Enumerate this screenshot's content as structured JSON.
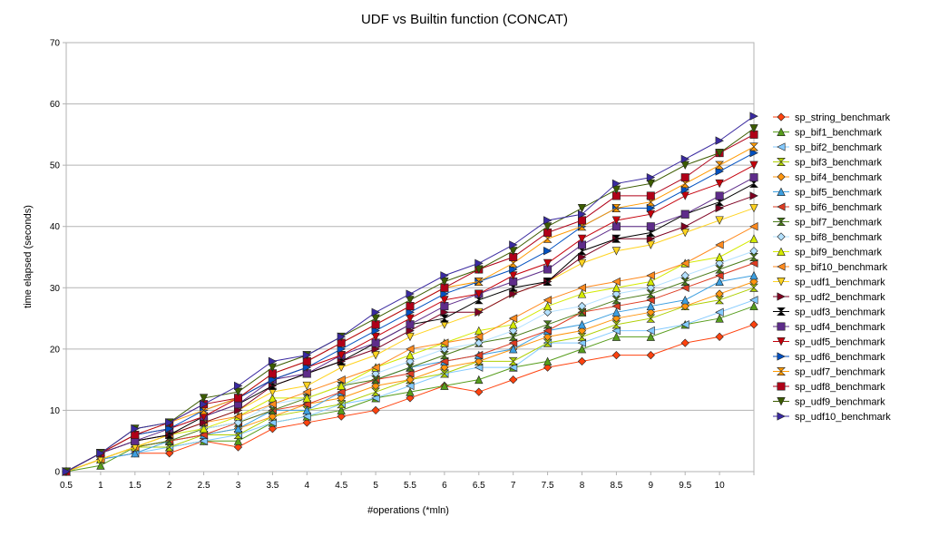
{
  "chart_data": {
    "type": "line",
    "title": "UDF vs Builtin function (CONCAT)",
    "xlabel": "#operations (*mln)",
    "ylabel": "time elapsed (seconds)",
    "x": [
      0.5,
      1,
      1.5,
      2,
      2.5,
      3,
      3.5,
      4,
      4.5,
      5,
      5.5,
      6,
      6.5,
      7,
      7.5,
      8,
      8.5,
      9,
      9.5,
      10,
      10.5
    ],
    "x_tick_labels": [
      "0.5",
      "1",
      "1.5",
      "2",
      "2.5",
      "3",
      "3.5",
      "4",
      "4.5",
      "5",
      "5.5",
      "6",
      "6.5",
      "7",
      "7.5",
      "8",
      "8.5",
      "9",
      "9.5",
      "10",
      ""
    ],
    "ylim": [
      0,
      70
    ],
    "y_ticks": [
      0,
      10,
      20,
      30,
      40,
      50,
      60,
      70
    ],
    "grid": "horizontal",
    "legend_position": "right",
    "series": [
      {
        "name": "sp_string_benchmark",
        "color": "#ff420e",
        "marker": "diamond",
        "values": [
          0,
          2,
          3,
          3,
          5,
          4,
          7,
          8,
          9,
          10,
          12,
          14,
          13,
          15,
          17,
          18,
          19,
          19,
          21,
          22,
          24
        ]
      },
      {
        "name": "sp_bif1_benchmark",
        "color": "#579d1c",
        "marker": "triangle-up",
        "values": [
          0,
          1,
          4,
          4,
          5,
          5,
          8,
          9,
          10,
          12,
          13,
          14,
          15,
          17,
          18,
          20,
          22,
          22,
          24,
          25,
          27
        ]
      },
      {
        "name": "sp_bif2_benchmark",
        "color": "#83caff",
        "marker": "triangle-left",
        "values": [
          0,
          2,
          3,
          4,
          5,
          6,
          8,
          9,
          11,
          12,
          14,
          16,
          17,
          17,
          21,
          21,
          23,
          23,
          24,
          26,
          28
        ]
      },
      {
        "name": "sp_bif3_benchmark",
        "color": "#aecf00",
        "marker": "bowtie",
        "values": [
          0,
          2,
          4,
          4,
          6,
          6,
          9,
          10,
          11,
          13,
          15,
          16,
          18,
          18,
          21,
          22,
          24,
          25,
          27,
          28,
          30
        ]
      },
      {
        "name": "sp_bif4_benchmark",
        "color": "#ff950e",
        "marker": "diamond",
        "values": [
          0,
          2,
          4,
          5,
          6,
          7,
          9,
          11,
          12,
          14,
          15,
          17,
          18,
          20,
          22,
          23,
          25,
          26,
          27,
          29,
          31
        ]
      },
      {
        "name": "sp_bif5_benchmark",
        "color": "#3d9fe0",
        "marker": "triangle-up",
        "values": [
          0,
          2,
          3,
          5,
          6,
          7,
          10,
          10,
          13,
          15,
          17,
          18,
          19,
          20,
          23,
          24,
          26,
          27,
          28,
          31,
          32
        ]
      },
      {
        "name": "sp_bif6_benchmark",
        "color": "#dd3c22",
        "marker": "triangle-left",
        "values": [
          0,
          2,
          4,
          5,
          6,
          8,
          10,
          11,
          13,
          15,
          16,
          18,
          19,
          21,
          23,
          26,
          27,
          28,
          30,
          32,
          34
        ]
      },
      {
        "name": "sp_bif7_benchmark",
        "color": "#4b7c1a",
        "marker": "bowtie",
        "values": [
          0,
          2,
          4,
          5,
          7,
          8,
          10,
          12,
          14,
          15,
          17,
          19,
          21,
          22,
          24,
          26,
          28,
          29,
          31,
          33,
          35
        ]
      },
      {
        "name": "sp_bif8_benchmark",
        "color": "#b3e0ff",
        "marker": "diamond",
        "values": [
          0,
          2,
          4,
          6,
          7,
          8,
          11,
          12,
          14,
          16,
          18,
          20,
          21,
          23,
          26,
          27,
          29,
          30,
          32,
          34,
          36
        ]
      },
      {
        "name": "sp_bif9_benchmark",
        "color": "#d4ea00",
        "marker": "triangle-up",
        "values": [
          0,
          2,
          4,
          6,
          7,
          9,
          12,
          12,
          14,
          17,
          19,
          21,
          23,
          24,
          27,
          29,
          30,
          31,
          34,
          35,
          38
        ]
      },
      {
        "name": "sp_bif10_benchmark",
        "color": "#ff8a1e",
        "marker": "triangle-left",
        "values": [
          0,
          2,
          4,
          6,
          8,
          9,
          11,
          13,
          15,
          17,
          20,
          21,
          22,
          25,
          28,
          30,
          31,
          32,
          34,
          37,
          40
        ]
      },
      {
        "name": "sp_udf1_benchmark",
        "color": "#ffd320",
        "marker": "triangle-down",
        "values": [
          0,
          2,
          4,
          6,
          8,
          10,
          13,
          14,
          17,
          19,
          22,
          24,
          26,
          29,
          31,
          34,
          36,
          37,
          39,
          41,
          43
        ]
      },
      {
        "name": "sp_udf2_benchmark",
        "color": "#7e0021",
        "marker": "triangle-right",
        "values": [
          0,
          3,
          5,
          6,
          8,
          10,
          14,
          16,
          18,
          20,
          23,
          26,
          26,
          29,
          31,
          35,
          38,
          38,
          40,
          43,
          45
        ]
      },
      {
        "name": "sp_udf3_benchmark",
        "color": "#000000",
        "marker": "bowtie",
        "values": [
          0,
          3,
          5,
          6,
          9,
          11,
          14,
          16,
          18,
          21,
          24,
          25,
          28,
          30,
          31,
          36,
          38,
          39,
          42,
          44,
          47
        ]
      },
      {
        "name": "sp_udf4_benchmark",
        "color": "#5e2c8a",
        "marker": "square",
        "values": [
          0,
          3,
          5,
          7,
          9,
          11,
          15,
          16,
          19,
          21,
          24,
          27,
          29,
          31,
          33,
          37,
          40,
          40,
          42,
          45,
          48
        ]
      },
      {
        "name": "sp_udf5_benchmark",
        "color": "#c5000b",
        "marker": "triangle-down",
        "values": [
          0,
          3,
          6,
          7,
          9,
          12,
          15,
          17,
          19,
          22,
          25,
          28,
          29,
          32,
          34,
          38,
          41,
          42,
          45,
          47,
          50
        ]
      },
      {
        "name": "sp_udf6_benchmark",
        "color": "#0050c0",
        "marker": "triangle-right",
        "values": [
          0,
          3,
          6,
          7,
          10,
          12,
          15,
          17,
          20,
          23,
          26,
          29,
          31,
          33,
          36,
          40,
          43,
          43,
          46,
          49,
          52
        ]
      },
      {
        "name": "sp_udf7_benchmark",
        "color": "#ff9900",
        "marker": "bowtie",
        "values": [
          0,
          3,
          6,
          8,
          10,
          12,
          16,
          18,
          21,
          24,
          27,
          30,
          31,
          34,
          38,
          40,
          43,
          44,
          47,
          50,
          53
        ]
      },
      {
        "name": "sp_udf8_benchmark",
        "color": "#b00018",
        "marker": "square",
        "values": [
          0,
          3,
          6,
          8,
          11,
          12,
          16,
          18,
          21,
          24,
          27,
          30,
          33,
          35,
          39,
          41,
          45,
          45,
          48,
          52,
          55
        ]
      },
      {
        "name": "sp_udf9_benchmark",
        "color": "#3c5c00",
        "marker": "triangle-down",
        "values": [
          0,
          3,
          7,
          8,
          12,
          13,
          17,
          19,
          22,
          25,
          28,
          31,
          33,
          36,
          40,
          43,
          46,
          47,
          50,
          52,
          56
        ]
      },
      {
        "name": "sp_udf10_benchmark",
        "color": "#3a2aa0",
        "marker": "triangle-right",
        "values": [
          0,
          3,
          7,
          8,
          11,
          14,
          18,
          19,
          22,
          26,
          29,
          32,
          34,
          37,
          41,
          42,
          47,
          48,
          51,
          54,
          58
        ]
      }
    ]
  }
}
